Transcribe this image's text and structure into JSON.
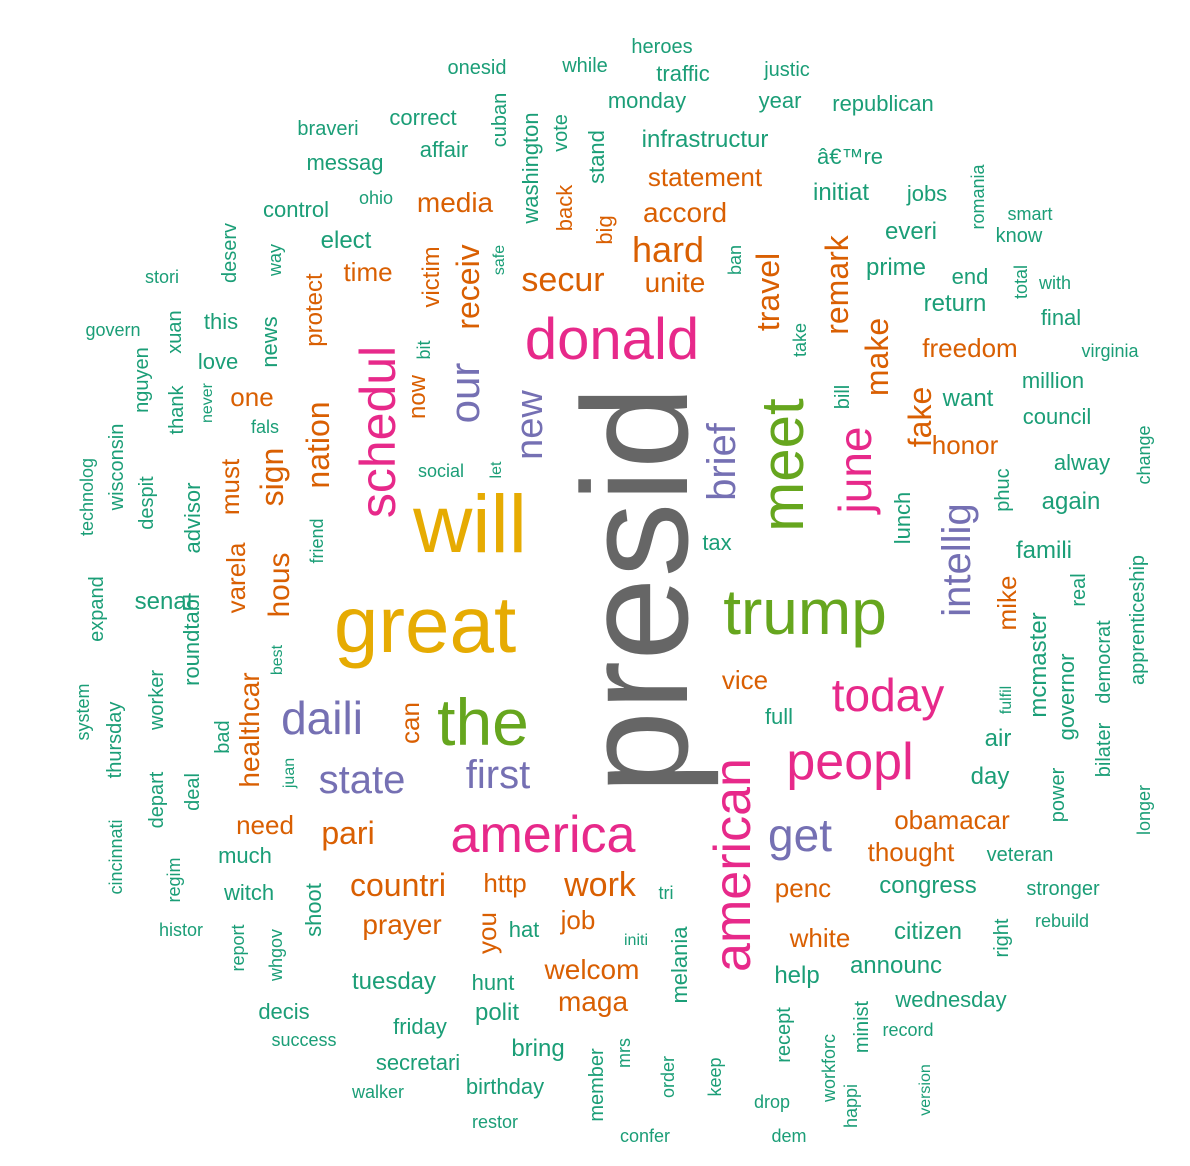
{
  "colors": {
    "grey": "#666666",
    "mustard": "#e6ab02",
    "olive": "#66a61e",
    "magenta": "#e7298a",
    "purple": "#7570b3",
    "orange": "#d95f02",
    "teal": "#1b9e77"
  },
  "words": [
    {
      "text": "presid",
      "color": "grey"
    },
    {
      "text": "great",
      "color": "mustard"
    },
    {
      "text": "will",
      "color": "mustard"
    },
    {
      "text": "the",
      "color": "olive"
    },
    {
      "text": "trump",
      "color": "olive"
    },
    {
      "text": "meet",
      "color": "olive"
    },
    {
      "text": "donald",
      "color": "magenta"
    },
    {
      "text": "america",
      "color": "magenta"
    },
    {
      "text": "american",
      "color": "magenta"
    },
    {
      "text": "peopl",
      "color": "magenta"
    },
    {
      "text": "schedul",
      "color": "magenta"
    },
    {
      "text": "today",
      "color": "magenta"
    },
    {
      "text": "june",
      "color": "magenta"
    },
    {
      "text": "daili",
      "color": "purple"
    },
    {
      "text": "state",
      "color": "purple"
    },
    {
      "text": "first",
      "color": "purple"
    },
    {
      "text": "get",
      "color": "purple"
    },
    {
      "text": "our",
      "color": "purple"
    },
    {
      "text": "new",
      "color": "purple"
    },
    {
      "text": "brief",
      "color": "purple"
    },
    {
      "text": "intellig",
      "color": "purple"
    },
    {
      "text": "secur",
      "color": "orange"
    },
    {
      "text": "hard",
      "color": "orange"
    },
    {
      "text": "receiv",
      "color": "orange"
    },
    {
      "text": "travel",
      "color": "orange"
    },
    {
      "text": "remark",
      "color": "orange"
    },
    {
      "text": "make",
      "color": "orange"
    },
    {
      "text": "fake",
      "color": "orange"
    },
    {
      "text": "nation",
      "color": "orange"
    },
    {
      "text": "sign",
      "color": "orange"
    },
    {
      "text": "hous",
      "color": "orange"
    },
    {
      "text": "pari",
      "color": "orange"
    },
    {
      "text": "countri",
      "color": "orange"
    },
    {
      "text": "work",
      "color": "orange"
    },
    {
      "text": "job",
      "color": "orange"
    },
    {
      "text": "prayer",
      "color": "orange"
    },
    {
      "text": "welcom",
      "color": "orange"
    },
    {
      "text": "maga",
      "color": "orange"
    },
    {
      "text": "media",
      "color": "orange"
    },
    {
      "text": "accord",
      "color": "orange"
    },
    {
      "text": "statement",
      "color": "orange"
    },
    {
      "text": "time",
      "color": "orange"
    },
    {
      "text": "unite",
      "color": "orange"
    },
    {
      "text": "freedom",
      "color": "orange"
    },
    {
      "text": "honor",
      "color": "orange"
    },
    {
      "text": "mike",
      "color": "orange"
    },
    {
      "text": "obamacar",
      "color": "orange"
    },
    {
      "text": "thought",
      "color": "orange"
    },
    {
      "text": "white",
      "color": "orange"
    },
    {
      "text": "penc",
      "color": "orange"
    },
    {
      "text": "vice",
      "color": "orange"
    },
    {
      "text": "http",
      "color": "orange"
    },
    {
      "text": "you",
      "color": "orange"
    },
    {
      "text": "need",
      "color": "orange"
    },
    {
      "text": "can",
      "color": "orange"
    },
    {
      "text": "healthcar",
      "color": "orange"
    },
    {
      "text": "varela",
      "color": "orange"
    },
    {
      "text": "must",
      "color": "orange"
    },
    {
      "text": "one",
      "color": "orange"
    },
    {
      "text": "protect",
      "color": "orange"
    },
    {
      "text": "victim",
      "color": "orange"
    },
    {
      "text": "now",
      "color": "orange"
    },
    {
      "text": "big",
      "color": "orange"
    },
    {
      "text": "back",
      "color": "orange"
    },
    {
      "text": "heroes",
      "color": "teal"
    },
    {
      "text": "onesid",
      "color": "teal"
    },
    {
      "text": "while",
      "color": "teal"
    },
    {
      "text": "traffic",
      "color": "teal"
    },
    {
      "text": "justic",
      "color": "teal"
    },
    {
      "text": "monday",
      "color": "teal"
    },
    {
      "text": "year",
      "color": "teal"
    },
    {
      "text": "republican",
      "color": "teal"
    },
    {
      "text": "braveri",
      "color": "teal"
    },
    {
      "text": "correct",
      "color": "teal"
    },
    {
      "text": "cuban",
      "color": "teal"
    },
    {
      "text": "vote",
      "color": "teal"
    },
    {
      "text": "infrastructur",
      "color": "teal"
    },
    {
      "text": "affair",
      "color": "teal"
    },
    {
      "text": "washington",
      "color": "teal"
    },
    {
      "text": "stand",
      "color": "teal"
    },
    {
      "text": "messag",
      "color": "teal"
    },
    {
      "text": "â€™re",
      "color": "teal"
    },
    {
      "text": "ohio",
      "color": "teal"
    },
    {
      "text": "initiat",
      "color": "teal"
    },
    {
      "text": "jobs",
      "color": "teal"
    },
    {
      "text": "romania",
      "color": "teal"
    },
    {
      "text": "control",
      "color": "teal"
    },
    {
      "text": "smart",
      "color": "teal"
    },
    {
      "text": "everi",
      "color": "teal"
    },
    {
      "text": "know",
      "color": "teal"
    },
    {
      "text": "elect",
      "color": "teal"
    },
    {
      "text": "deserv",
      "color": "teal"
    },
    {
      "text": "way",
      "color": "teal"
    },
    {
      "text": "safe",
      "color": "teal"
    },
    {
      "text": "ban",
      "color": "teal"
    },
    {
      "text": "prime",
      "color": "teal"
    },
    {
      "text": "end",
      "color": "teal"
    },
    {
      "text": "total",
      "color": "teal"
    },
    {
      "text": "with",
      "color": "teal"
    },
    {
      "text": "stori",
      "color": "teal"
    },
    {
      "text": "return",
      "color": "teal"
    },
    {
      "text": "final",
      "color": "teal"
    },
    {
      "text": "govern",
      "color": "teal"
    },
    {
      "text": "xuan",
      "color": "teal"
    },
    {
      "text": "this",
      "color": "teal"
    },
    {
      "text": "news",
      "color": "teal"
    },
    {
      "text": "take",
      "color": "teal"
    },
    {
      "text": "virginia",
      "color": "teal"
    },
    {
      "text": "love",
      "color": "teal"
    },
    {
      "text": "bit",
      "color": "teal"
    },
    {
      "text": "nguyen",
      "color": "teal"
    },
    {
      "text": "million",
      "color": "teal"
    },
    {
      "text": "bill",
      "color": "teal"
    },
    {
      "text": "want",
      "color": "teal"
    },
    {
      "text": "thank",
      "color": "teal"
    },
    {
      "text": "never",
      "color": "teal"
    },
    {
      "text": "council",
      "color": "teal"
    },
    {
      "text": "fals",
      "color": "teal"
    },
    {
      "text": "wisconsin",
      "color": "teal"
    },
    {
      "text": "social",
      "color": "teal"
    },
    {
      "text": "let",
      "color": "teal"
    },
    {
      "text": "alway",
      "color": "teal"
    },
    {
      "text": "change",
      "color": "teal"
    },
    {
      "text": "technolog",
      "color": "teal"
    },
    {
      "text": "despit",
      "color": "teal"
    },
    {
      "text": "lunch",
      "color": "teal"
    },
    {
      "text": "phuc",
      "color": "teal"
    },
    {
      "text": "again",
      "color": "teal"
    },
    {
      "text": "advisor",
      "color": "teal"
    },
    {
      "text": "friend",
      "color": "teal"
    },
    {
      "text": "tax",
      "color": "teal"
    },
    {
      "text": "famili",
      "color": "teal"
    },
    {
      "text": "expand",
      "color": "teal"
    },
    {
      "text": "apprenticeship",
      "color": "teal"
    },
    {
      "text": "senat",
      "color": "teal"
    },
    {
      "text": "roundtabl",
      "color": "teal"
    },
    {
      "text": "real",
      "color": "teal"
    },
    {
      "text": "democrat",
      "color": "teal"
    },
    {
      "text": "mcmaster",
      "color": "teal"
    },
    {
      "text": "best",
      "color": "teal"
    },
    {
      "text": "fulfil",
      "color": "teal"
    },
    {
      "text": "governor",
      "color": "teal"
    },
    {
      "text": "system",
      "color": "teal"
    },
    {
      "text": "worker",
      "color": "teal"
    },
    {
      "text": "bad",
      "color": "teal"
    },
    {
      "text": "full",
      "color": "teal"
    },
    {
      "text": "thursday",
      "color": "teal"
    },
    {
      "text": "bilater",
      "color": "teal"
    },
    {
      "text": "air",
      "color": "teal"
    },
    {
      "text": "juan",
      "color": "teal"
    },
    {
      "text": "deal",
      "color": "teal"
    },
    {
      "text": "depart",
      "color": "teal"
    },
    {
      "text": "day",
      "color": "teal"
    },
    {
      "text": "power",
      "color": "teal"
    },
    {
      "text": "longer",
      "color": "teal"
    },
    {
      "text": "cincinnati",
      "color": "teal"
    },
    {
      "text": "much",
      "color": "teal"
    },
    {
      "text": "veteran",
      "color": "teal"
    },
    {
      "text": "regim",
      "color": "teal"
    },
    {
      "text": "witch",
      "color": "teal"
    },
    {
      "text": "shoot",
      "color": "teal"
    },
    {
      "text": "tri",
      "color": "teal"
    },
    {
      "text": "congress",
      "color": "teal"
    },
    {
      "text": "stronger",
      "color": "teal"
    },
    {
      "text": "histor",
      "color": "teal"
    },
    {
      "text": "report",
      "color": "teal"
    },
    {
      "text": "whgov",
      "color": "teal"
    },
    {
      "text": "hat",
      "color": "teal"
    },
    {
      "text": "initi",
      "color": "teal"
    },
    {
      "text": "melania",
      "color": "teal"
    },
    {
      "text": "citizen",
      "color": "teal"
    },
    {
      "text": "right",
      "color": "teal"
    },
    {
      "text": "rebuild",
      "color": "teal"
    },
    {
      "text": "tuesday",
      "color": "teal"
    },
    {
      "text": "hunt",
      "color": "teal"
    },
    {
      "text": "help",
      "color": "teal"
    },
    {
      "text": "announc",
      "color": "teal"
    },
    {
      "text": "decis",
      "color": "teal"
    },
    {
      "text": "polit",
      "color": "teal"
    },
    {
      "text": "wednesday",
      "color": "teal"
    },
    {
      "text": "friday",
      "color": "teal"
    },
    {
      "text": "success",
      "color": "teal"
    },
    {
      "text": "bring",
      "color": "teal"
    },
    {
      "text": "recept",
      "color": "teal"
    },
    {
      "text": "minist",
      "color": "teal"
    },
    {
      "text": "record",
      "color": "teal"
    },
    {
      "text": "secretari",
      "color": "teal"
    },
    {
      "text": "mrs",
      "color": "teal"
    },
    {
      "text": "member",
      "color": "teal"
    },
    {
      "text": "order",
      "color": "teal"
    },
    {
      "text": "workforc",
      "color": "teal"
    },
    {
      "text": "walker",
      "color": "teal"
    },
    {
      "text": "birthday",
      "color": "teal"
    },
    {
      "text": "keep",
      "color": "teal"
    },
    {
      "text": "drop",
      "color": "teal"
    },
    {
      "text": "happi",
      "color": "teal"
    },
    {
      "text": "version",
      "color": "teal"
    },
    {
      "text": "restor",
      "color": "teal"
    },
    {
      "text": "confer",
      "color": "teal"
    },
    {
      "text": "dem",
      "color": "teal"
    }
  ]
}
